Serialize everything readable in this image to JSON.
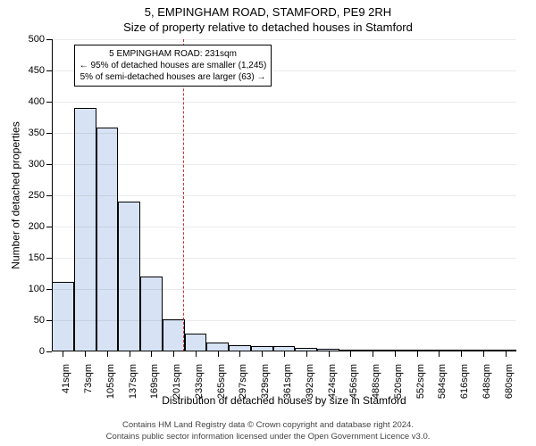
{
  "header": {
    "title": "5, EMPINGHAM ROAD, STAMFORD, PE9 2RH",
    "subtitle": "Size of property relative to detached houses in Stamford"
  },
  "chart": {
    "type": "histogram",
    "ylabel": "Number of detached properties",
    "xlabel": "Distribution of detached houses by size in Stamford",
    "ylim": [
      0,
      500
    ],
    "ytick_step": 50,
    "yticks": [
      0,
      50,
      100,
      150,
      200,
      250,
      300,
      350,
      400,
      450,
      500
    ],
    "bar_fill": "#d7e3f4",
    "bar_border": "#000000",
    "background_color": "#ffffff",
    "axis_color": "#000000",
    "gridline_color": "#000000",
    "gridline_opacity": 0.08,
    "marker_color": "#cc3333",
    "xticks": [
      "41sqm",
      "73sqm",
      "105sqm",
      "137sqm",
      "169sqm",
      "201sqm",
      "233sqm",
      "265sqm",
      "297sqm",
      "329sqm",
      "361sqm",
      "392sqm",
      "424sqm",
      "456sqm",
      "488sqm",
      "520sqm",
      "552sqm",
      "584sqm",
      "616sqm",
      "648sqm",
      "680sqm"
    ],
    "values": [
      112,
      390,
      358,
      240,
      120,
      52,
      28,
      14,
      10,
      9,
      8,
      6,
      4,
      3,
      3,
      2,
      2,
      1,
      1,
      1,
      1
    ],
    "bar_width": 1.0,
    "marker_x_index": 5.94,
    "font_family": "Arial",
    "title_fontsize": 13,
    "label_fontsize": 12,
    "tick_fontsize": 11
  },
  "annotation": {
    "line1": "5 EMPINGHAM ROAD: 231sqm",
    "line2": "← 95% of detached houses are smaller (1,245)",
    "line3": "5% of semi-detached houses are larger (63) →"
  },
  "footer": {
    "line1": "Contains HM Land Registry data © Crown copyright and database right 2024.",
    "line2": "Contains public sector information licensed under the Open Government Licence v3.0."
  }
}
